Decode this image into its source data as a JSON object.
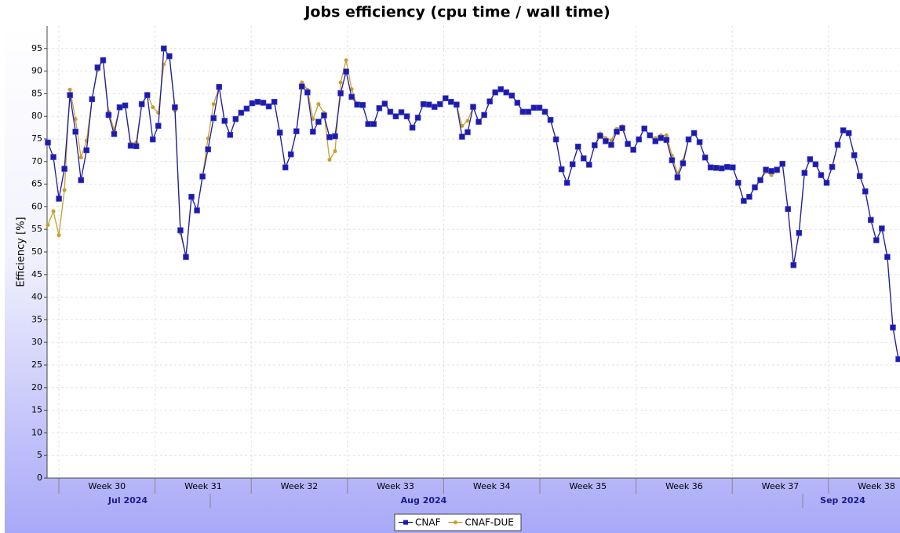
{
  "chart_data": {
    "type": "line",
    "title": "Jobs efficiency (cpu time / wall time)",
    "ylabel": "Efficiency [%]",
    "week_labels": [
      "Week 30",
      "Week 31",
      "Week 32",
      "Week 33",
      "Week 34",
      "Week 35",
      "Week 36",
      "Week 37",
      "Week 38"
    ],
    "month_labels": [
      "Jul 2024",
      "Aug 2024",
      "Sep 2024"
    ],
    "ylim": [
      0,
      100
    ],
    "yticks": [
      0,
      5,
      10,
      15,
      20,
      25,
      30,
      35,
      40,
      45,
      50,
      55,
      60,
      65,
      70,
      75,
      80,
      85,
      90,
      95
    ],
    "grid": true,
    "legend": "bottom",
    "series": [
      {
        "name": "CNAF",
        "color": "#1c1ca8",
        "marker": "square",
        "values": [
          74.2,
          71,
          61.8,
          68.4,
          84.7,
          76.6,
          65.9,
          72.5,
          83.8,
          90.8,
          92.4,
          80.3,
          76.1,
          82,
          82.4,
          73.5,
          73.4,
          82.7,
          84.7,
          74.9,
          77.9,
          95,
          93.3,
          82,
          54.8,
          48.9,
          62.2,
          59.2,
          66.7,
          72.7,
          79.6,
          86.5,
          79,
          75.9,
          79.4,
          80.8,
          81.7,
          82.9,
          83.2,
          83,
          82.2,
          83.2,
          76.4,
          68.7,
          71.6,
          76.7,
          86.6,
          85.3,
          76.6,
          78.8,
          80.2,
          75.4,
          75.6,
          85.1,
          89.9,
          84.3,
          82.6,
          82.5,
          78.3,
          78.3,
          81.8,
          82.8,
          81,
          80,
          80.9,
          80,
          77.5,
          79.7,
          82.7,
          82.6,
          82.1,
          82.7,
          84,
          83.2,
          82.6,
          75.5,
          76.5,
          82.1,
          78.8,
          80.3,
          83.3,
          85.3,
          86,
          85.3,
          84.6,
          83,
          81,
          81,
          81.9,
          81.9,
          81,
          79.2,
          74.9,
          68.3,
          65.3,
          69.4,
          73.3,
          70.7,
          69.3,
          73.6,
          75.7,
          74.5,
          73.7,
          76.6,
          77.4,
          73.9,
          72.6,
          74.9,
          77.3,
          75.8,
          74.5,
          75.2,
          74.8,
          70.3,
          66.5,
          69.6,
          74.9,
          76.3,
          74.3,
          70.9,
          68.7,
          68.6,
          68.5,
          68.8,
          68.7,
          65.3,
          61.3,
          62.2,
          64.3,
          65.9,
          68.2,
          67.9,
          68.2,
          69.5,
          59.5,
          47.1,
          54.2,
          67.5,
          70.5,
          69.4,
          67,
          65.3,
          68.8,
          73.7,
          76.9,
          76.3,
          71.4,
          66.8,
          63.4,
          57.1,
          52.6,
          55.2,
          48.9,
          33.3,
          26.3
        ]
      },
      {
        "name": "CNAF-DUE",
        "color": "#c8a030",
        "marker": "circle",
        "values": [
          56,
          59,
          53.7,
          63.7,
          85.9,
          79.4,
          70.9,
          74.6,
          83.8,
          90.2,
          92.4,
          81,
          77,
          82,
          82.4,
          74,
          74.2,
          82.7,
          85,
          82,
          80.8,
          91.5,
          93.5,
          81.2,
          54.2,
          49,
          62.2,
          59.2,
          66.7,
          75.1,
          82.7,
          86.5,
          79,
          75.9,
          79.4,
          80.8,
          81.7,
          82.9,
          83.2,
          83,
          82.2,
          83.2,
          76.4,
          68.7,
          71.6,
          76.7,
          87.5,
          85.9,
          79.4,
          82.7,
          80.8,
          70.4,
          72.3,
          87.5,
          92.4,
          86,
          82.6,
          82.5,
          78.3,
          78.3,
          81.8,
          82.8,
          81,
          80,
          80.9,
          80,
          77.5,
          79.7,
          82.7,
          82.6,
          82.1,
          82.7,
          84,
          83.2,
          82.6,
          77.9,
          79,
          82.1,
          78.8,
          80.3,
          83.3,
          85.3,
          86,
          85.3,
          84.6,
          83,
          81,
          81,
          81.9,
          81.9,
          81,
          79.2,
          74.9,
          68.3,
          65.3,
          69.4,
          73.3,
          70.7,
          69.3,
          73.6,
          76.2,
          75.2,
          74.7,
          77.2,
          77.8,
          73.9,
          72.6,
          74.9,
          77.3,
          75.8,
          75.2,
          75.8,
          75.8,
          71.3,
          67.4,
          70.2,
          74.9,
          76.3,
          74.3,
          70.9,
          68.7,
          68.6,
          68.5,
          68.8,
          68.7,
          65.3,
          61.3,
          62.2,
          64.3,
          65.9,
          67.7,
          67,
          67.8,
          69.5,
          59.5,
          47.1,
          54.2,
          67.5,
          70.5,
          69.4,
          67,
          65.3,
          68.8,
          73.7,
          76.9,
          76.3,
          71.4,
          66.8,
          63.4,
          57.1,
          52.6,
          55.2,
          48.9,
          33.3,
          26.3
        ]
      }
    ]
  }
}
